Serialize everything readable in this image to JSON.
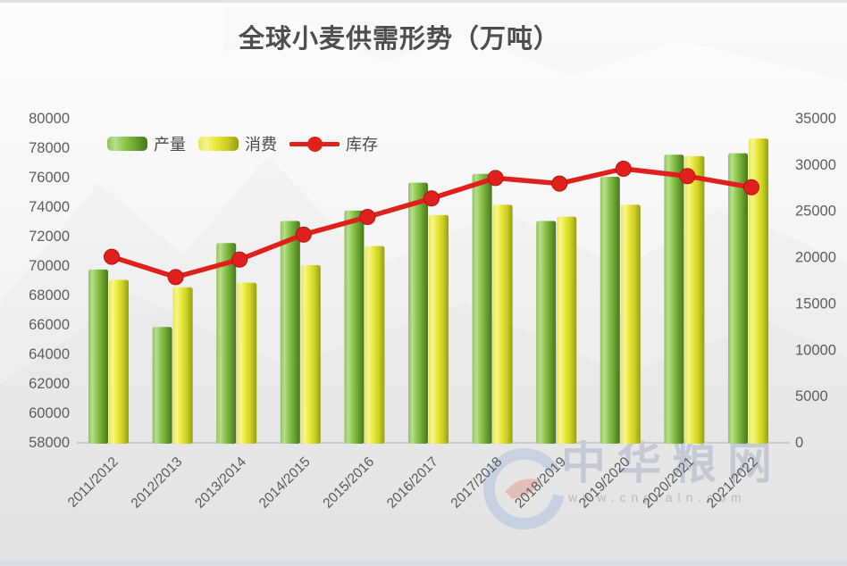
{
  "chart_data": {
    "type": "bar+line",
    "title": "全球小麦供需形势（万吨）",
    "categories": [
      "2011/2012",
      "2012/2013",
      "2013/2014",
      "2014/2015",
      "2015/2016",
      "2016/2017",
      "2017/2018",
      "2018/2019",
      "2019/2020",
      "2020/2021",
      "2021/2022"
    ],
    "series": [
      {
        "key": "production",
        "name": "产量",
        "type": "bar",
        "axis": "left",
        "color": "#8cc63f",
        "values": [
          69700,
          65800,
          71500,
          73000,
          73700,
          75600,
          76200,
          73000,
          76000,
          77500,
          77600
        ]
      },
      {
        "key": "consumption",
        "name": "消费",
        "type": "bar",
        "axis": "left",
        "color": "#e3e12e",
        "values": [
          69000,
          68500,
          68800,
          70000,
          71300,
          73400,
          74100,
          73300,
          74100,
          77400,
          78600
        ]
      },
      {
        "key": "stocks",
        "name": "库存",
        "type": "line",
        "axis": "right",
        "color": "#e0201c",
        "values": [
          20000,
          17800,
          19700,
          22400,
          24300,
          26300,
          28500,
          27900,
          29500,
          28700,
          27500
        ]
      }
    ],
    "left_axis": {
      "min": 58000,
      "max": 80000,
      "step": 2000,
      "ticks": [
        58000,
        60000,
        62000,
        64000,
        66000,
        68000,
        70000,
        72000,
        74000,
        76000,
        78000,
        80000
      ]
    },
    "right_axis": {
      "min": 0,
      "max": 35000,
      "step": 5000,
      "ticks": [
        0,
        5000,
        10000,
        15000,
        20000,
        25000,
        30000,
        35000
      ]
    },
    "legend_position": "top-left",
    "grid": false
  },
  "watermark": {
    "brand": "中华粮网",
    "url": "www.cngrain.com"
  }
}
